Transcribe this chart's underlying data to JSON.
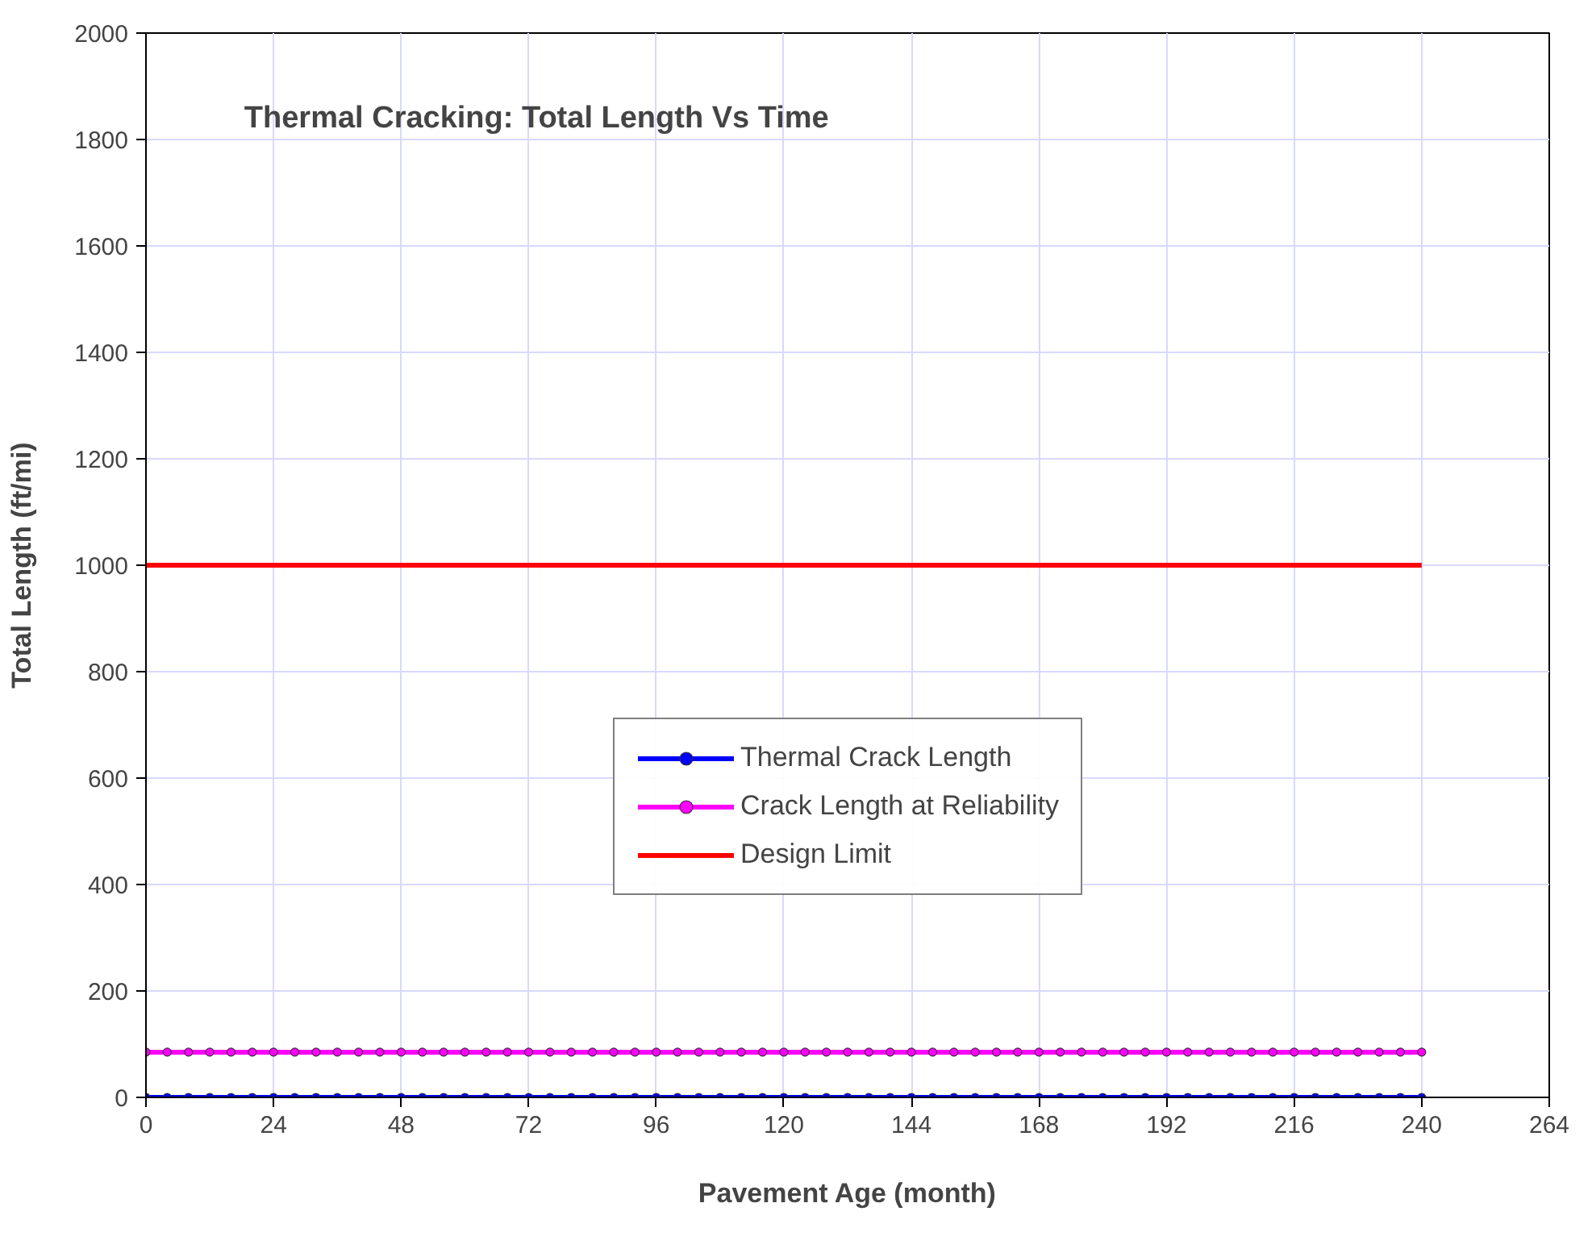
{
  "chart_data": {
    "type": "line",
    "title": "Thermal Cracking: Total Length Vs Time",
    "xlabel": "Pavement Age (month)",
    "ylabel": "Total Length (ft/mi)",
    "x": [
      0,
      4,
      8,
      12,
      16,
      20,
      24,
      28,
      32,
      36,
      40,
      44,
      48,
      52,
      56,
      60,
      64,
      68,
      72,
      76,
      80,
      84,
      88,
      92,
      96,
      100,
      104,
      108,
      112,
      116,
      120,
      124,
      128,
      132,
      136,
      140,
      144,
      148,
      152,
      156,
      160,
      164,
      168,
      172,
      176,
      180,
      184,
      188,
      192,
      196,
      200,
      204,
      208,
      212,
      216,
      220,
      224,
      228,
      232,
      236,
      240
    ],
    "series": [
      {
        "name": "Thermal Crack Length",
        "color": "#0000ff",
        "marker": "circle",
        "values": [
          0,
          0,
          0,
          0,
          0,
          0,
          0,
          0,
          0,
          0,
          0,
          0,
          0,
          0,
          0,
          0,
          0,
          0,
          0,
          0,
          0,
          0,
          0,
          0,
          0,
          0,
          0,
          0,
          0,
          0,
          0,
          0,
          0,
          0,
          0,
          0,
          0,
          0,
          0,
          0,
          0,
          0,
          0,
          0,
          0,
          0,
          0,
          0,
          0,
          0,
          0,
          0,
          0,
          0,
          0,
          0,
          0,
          0,
          0,
          0,
          0
        ]
      },
      {
        "name": "Crack Length at Reliability",
        "color": "#ff00ff",
        "marker": "circle",
        "values": [
          85,
          85,
          85,
          85,
          85,
          85,
          85,
          85,
          85,
          85,
          85,
          85,
          85,
          85,
          85,
          85,
          85,
          85,
          85,
          85,
          85,
          85,
          85,
          85,
          85,
          85,
          85,
          85,
          85,
          85,
          85,
          85,
          85,
          85,
          85,
          85,
          85,
          85,
          85,
          85,
          85,
          85,
          85,
          85,
          85,
          85,
          85,
          85,
          85,
          85,
          85,
          85,
          85,
          85,
          85,
          85,
          85,
          85,
          85,
          85,
          85
        ]
      },
      {
        "name": "Design Limit",
        "color": "#ff0000",
        "marker": "none",
        "x": [
          0,
          240
        ],
        "values": [
          1000,
          1000
        ]
      }
    ],
    "xlim": [
      0,
      264
    ],
    "xticks": [
      0,
      24,
      48,
      72,
      96,
      120,
      144,
      168,
      192,
      216,
      240,
      264
    ],
    "ylim": [
      0,
      2000
    ],
    "yticks": [
      0,
      200,
      400,
      600,
      800,
      1000,
      1200,
      1400,
      1600,
      1800,
      2000
    ],
    "grid": true,
    "legend": "right"
  }
}
